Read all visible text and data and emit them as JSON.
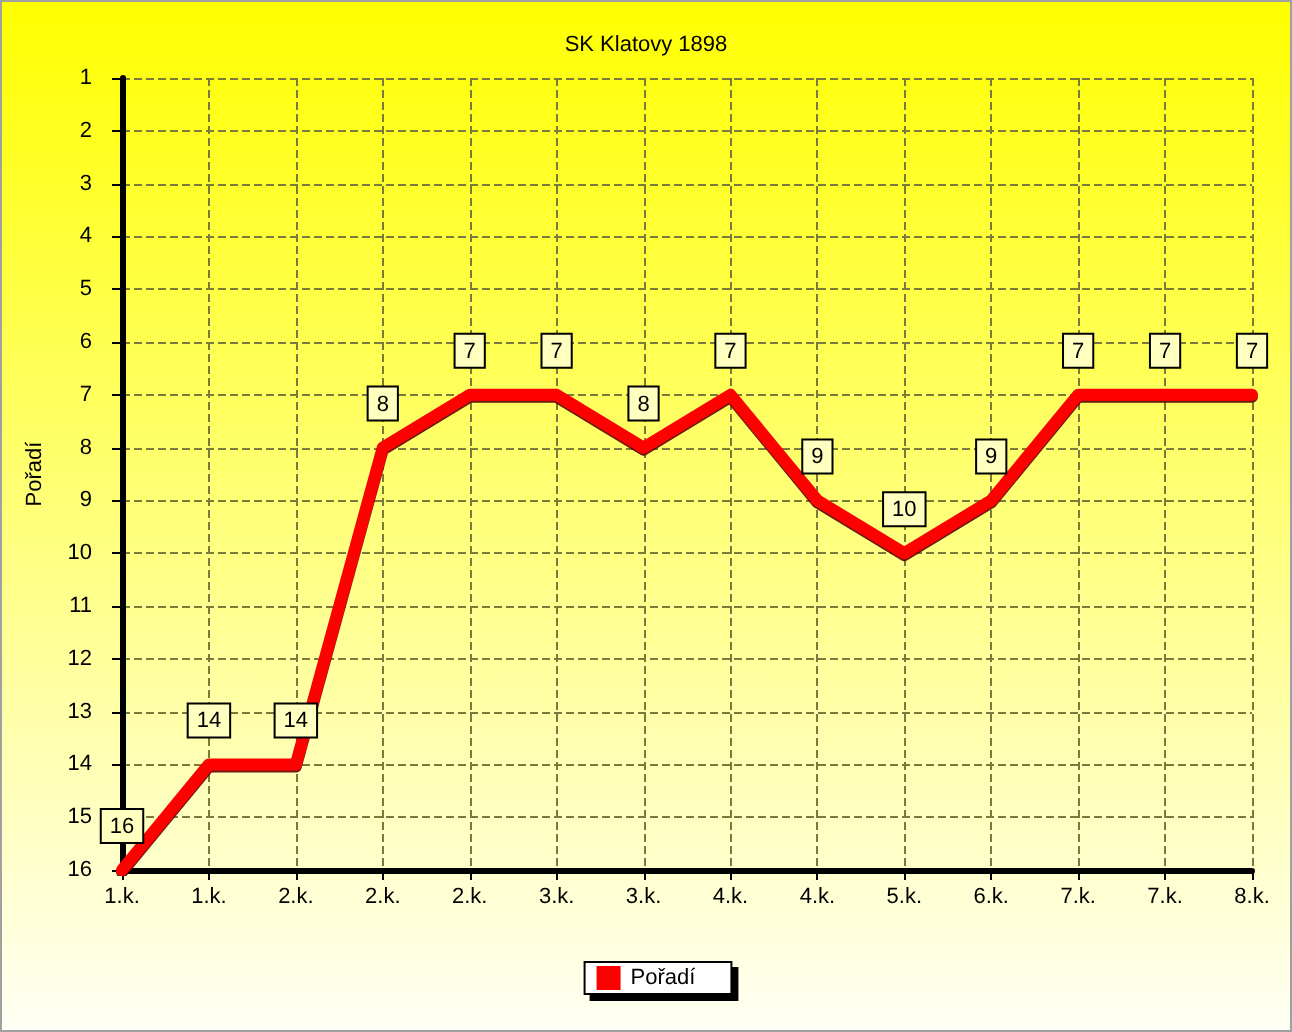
{
  "chart_data": {
    "type": "line",
    "title": "SK Klatovy 1898",
    "ylabel": "Pořadí",
    "categories": [
      "1.k.",
      "1.k.",
      "2.k.",
      "2.k.",
      "2.k.",
      "3.k.",
      "3.k.",
      "4.k.",
      "4.k.",
      "5.k.",
      "6.k.",
      "7.k.",
      "7.k.",
      "8.k."
    ],
    "series": [
      {
        "name": "Pořadí",
        "color": "#ff0000",
        "values": [
          16,
          14,
          14,
          8,
          7,
          7,
          8,
          7,
          9,
          10,
          9,
          7,
          7,
          7
        ]
      }
    ],
    "ylim": [
      16,
      1
    ],
    "yticks": [
      1,
      2,
      3,
      4,
      5,
      6,
      7,
      8,
      9,
      10,
      11,
      12,
      13,
      14,
      15,
      16
    ],
    "grid": true,
    "legend": "bottom",
    "data_labels": true,
    "marker": "none",
    "line_style": "solid"
  }
}
